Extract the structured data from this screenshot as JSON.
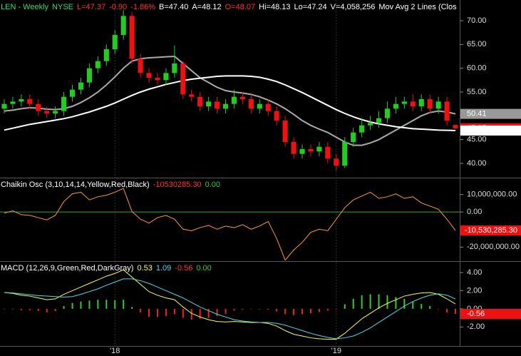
{
  "chart_data": [
    {
      "type": "candlestick",
      "header": [
        {
          "text": "LEN - Weekly",
          "color": "#33dd66"
        },
        {
          "text": "NYSE",
          "color": "#33dd66"
        },
        {
          "text": "L=47.37",
          "color": "#ff3333"
        },
        {
          "text": "-0.90",
          "color": "#ff3333"
        },
        {
          "text": "-1.86%",
          "color": "#ff3333"
        },
        {
          "text": "B=47.40",
          "color": "#ffffff"
        },
        {
          "text": "A=48.12",
          "color": "#ffffff"
        },
        {
          "text": "O=48.07",
          "color": "#ff3333"
        },
        {
          "text": "Hi=48.13",
          "color": "#ffffff"
        },
        {
          "text": "Lo=47.24",
          "color": "#ffffff"
        },
        {
          "text": "V=4,058,256",
          "color": "#ffffff"
        },
        {
          "text": "Mov Avg 2 Lines (Clos",
          "color": "#ffffff"
        }
      ],
      "open": [
        51.5,
        52.5,
        53,
        53.5,
        52.5,
        51,
        50.5,
        51,
        54,
        55.5,
        57,
        60,
        61.5,
        64,
        67,
        71,
        62,
        59,
        58,
        57.5,
        59,
        61,
        54.5,
        54,
        52,
        53,
        51.5,
        52.5,
        54,
        53.5,
        51.5,
        52.5,
        51,
        49,
        44.5,
        42,
        43,
        42.5,
        43.5,
        41,
        39.5,
        44.5,
        46.5,
        48,
        48.5,
        49.5,
        51.5,
        52.5,
        53,
        52,
        53.5,
        51.5,
        53,
        48.07
      ],
      "high": [
        53.5,
        54,
        54.5,
        54.5,
        53.5,
        52,
        52,
        55,
        56.5,
        58,
        61,
        62.5,
        65,
        68,
        72.3,
        71.8,
        63,
        60,
        59,
        60,
        64.8,
        61.5,
        55.5,
        55,
        54,
        54,
        53.5,
        55.5,
        55,
        54.5,
        53.5,
        53.5,
        52,
        50,
        45.5,
        44,
        44,
        44.5,
        44.5,
        42,
        45.5,
        47.5,
        49.5,
        50,
        51,
        53,
        54,
        54,
        54.5,
        54.5,
        54.5,
        54,
        54,
        48.13
      ],
      "low": [
        50.5,
        51.5,
        52,
        51.5,
        50,
        49.5,
        49.5,
        50,
        53,
        54.5,
        56,
        59,
        60.5,
        63,
        66,
        61,
        58,
        57,
        56.5,
        56.5,
        58,
        53.5,
        53,
        51,
        51,
        50.5,
        50.5,
        51.5,
        52.5,
        50.5,
        50.5,
        50,
        48,
        43.5,
        41,
        41,
        41.5,
        41.5,
        40,
        38.5,
        39,
        43.5,
        45.5,
        47,
        47.5,
        48.5,
        50.5,
        51.5,
        51,
        51,
        50.5,
        50.5,
        48,
        47.24
      ],
      "close": [
        52.5,
        53,
        53.5,
        52.5,
        51,
        50.5,
        51,
        54,
        55.5,
        57,
        60,
        61.5,
        64,
        67,
        71,
        62,
        59,
        58,
        57.5,
        59,
        61,
        54.5,
        54,
        52,
        53,
        51.5,
        52.5,
        54,
        53.5,
        51.5,
        52.5,
        51,
        49,
        44.5,
        42,
        43,
        42.5,
        43.5,
        41,
        39.5,
        44.5,
        46.5,
        48,
        48.5,
        49.5,
        51.5,
        52.5,
        53,
        52,
        53.5,
        51.5,
        53,
        49,
        47.37
      ],
      "up_color": "#22cc22",
      "down_color": "#ee1111",
      "series": [
        {
          "color": "#aaaaaa",
          "values": [
            51,
            51.2,
            51.5,
            51.7,
            51.6,
            51.4,
            51.3,
            51.5,
            52,
            52.8,
            53.8,
            55,
            56.5,
            58.2,
            60,
            61.5,
            62,
            62.2,
            62.3,
            62.4,
            62.5,
            61,
            59.5,
            58,
            57,
            56,
            55.3,
            55,
            54.8,
            54.5,
            54,
            53.3,
            52.5,
            51.5,
            50.3,
            49,
            48,
            47.2,
            46.5,
            45.5,
            44.5,
            43.8,
            43.8,
            44.3,
            45,
            46,
            47,
            48,
            49,
            50,
            50.7,
            51,
            50.8,
            50.41
          ]
        },
        {
          "color": "#ffffff",
          "values": [
            47,
            47.4,
            47.8,
            48.2,
            48.5,
            48.8,
            49.1,
            49.4,
            49.8,
            50.3,
            50.8,
            51.4,
            52,
            52.7,
            53.5,
            54.3,
            55,
            55.6,
            56.1,
            56.6,
            57,
            57.4,
            57.7,
            57.9,
            58.1,
            58.3,
            58.4,
            58.4,
            58.4,
            58.3,
            58.1,
            57.7,
            57.2,
            56.5,
            55.7,
            54.9,
            54,
            53.1,
            52.2,
            51.3,
            50.5,
            49.8,
            49.2,
            48.7,
            48.3,
            48,
            47.7,
            47.5,
            47.3,
            47.2,
            47.1,
            47,
            46.95,
            46.9
          ]
        }
      ],
      "ylim": [
        37,
        74.35
      ],
      "yticks": [
        {
          "value": 40,
          "label": "40.00"
        },
        {
          "value": 45,
          "label": "45.00"
        },
        {
          "value": 50,
          "label": "50.00"
        },
        {
          "value": 55,
          "label": "55.00"
        },
        {
          "value": 60,
          "label": "60.00"
        },
        {
          "value": 65,
          "label": "65.00"
        },
        {
          "value": 70,
          "label": "70.00"
        }
      ]
    },
    {
      "type": "line",
      "header": [
        {
          "text": "Chaikin Osc (3,10,14,14,Yellow,Red,Black)",
          "color": "#ffffff"
        },
        {
          "text": "-10530285.30",
          "color": "#ff3333"
        },
        {
          "text": "0.00",
          "color": "#33cc33"
        }
      ],
      "series": [
        {
          "color": "#ff9933",
          "values": [
            -600000,
            700000,
            -1500000,
            -1900000,
            -3200000,
            -4500000,
            -1900000,
            6000000,
            10400000,
            11300000,
            6900000,
            8700000,
            9600000,
            11300000,
            13500000,
            300000,
            -4100000,
            -6300000,
            -3200000,
            -1900000,
            -4100000,
            -9800000,
            -10700000,
            -8900000,
            -7600000,
            -9800000,
            -8000000,
            -8900000,
            -7200000,
            -9800000,
            -8000000,
            -5400000,
            -15100000,
            -27400000,
            -21700000,
            -17300000,
            -11600000,
            -9800000,
            -10700000,
            -4100000,
            2500000,
            6900000,
            9100000,
            11300000,
            7800000,
            8700000,
            10400000,
            7800000,
            8700000,
            5200000,
            3400000,
            1600000,
            -4100000,
            -10530285.3
          ],
          "value_labels": [
            null,
            null,
            null,
            null,
            null,
            null,
            null,
            null,
            null,
            null,
            null,
            null,
            null,
            null,
            null,
            null,
            null,
            null,
            null,
            null,
            null,
            null,
            null,
            null,
            null,
            null,
            null,
            null,
            null,
            null,
            null,
            null,
            null,
            null,
            null,
            null,
            null,
            null,
            null,
            null,
            null,
            null,
            null,
            null,
            null,
            null,
            null,
            null,
            null,
            null,
            null,
            null,
            null,
            "-10,530,285.30"
          ]
        }
      ],
      "zero_color": "#33aa33",
      "ylim": [
        -28000000,
        19200000
      ],
      "yticks": [
        {
          "value": -20000000,
          "label": "-20,000,000.00"
        },
        {
          "value": 0,
          "label": "0.00"
        },
        {
          "value": 10000000,
          "label": "10,000,000.00"
        }
      ]
    },
    {
      "type": "macd",
      "header": [
        {
          "text": "MACD (12,26,9,Green,Red,DarkGray)",
          "color": "#ffffff"
        },
        {
          "text": "0.53",
          "color": "#ffff44"
        },
        {
          "text": "1.09",
          "color": "#44ddee"
        },
        {
          "text": "-0.56",
          "color": "#ff3333"
        },
        {
          "text": "0.00",
          "color": "#33cc33"
        }
      ],
      "categories": [
        null,
        null,
        null,
        null,
        null,
        null,
        null,
        null,
        null,
        null,
        null,
        null,
        null,
        "'18",
        null,
        null,
        null,
        null,
        null,
        null,
        null,
        null,
        null,
        null,
        null,
        null,
        null,
        null,
        null,
        null,
        null,
        null,
        null,
        null,
        null,
        null,
        null,
        null,
        null,
        "'19",
        null,
        null,
        null,
        null,
        null,
        null,
        null,
        null,
        null,
        null,
        null,
        null,
        null,
        null
      ],
      "series": [
        {
          "color": "#ffff44",
          "values": [
            1.8,
            1.7,
            1.5,
            1.4,
            1.2,
            1.0,
            1.1,
            1.6,
            2.0,
            2.4,
            2.8,
            3.2,
            3.6,
            3.9,
            4.3,
            3.5,
            2.7,
            1.9,
            1.5,
            1.2,
            1.0,
            0.2,
            -0.5,
            -0.9,
            -1.2,
            -1.4,
            -1.45,
            -1.4,
            -1.45,
            -1.5,
            -1.5,
            -1.6,
            -1.9,
            -2.4,
            -2.8,
            -3.0,
            -3.2,
            -3.3,
            -3.35,
            -3.35,
            -2.7,
            -1.9,
            -1.1,
            -0.5,
            0.1,
            0.6,
            1.0,
            1.4,
            1.6,
            1.75,
            1.8,
            1.6,
            1.1,
            0.53
          ]
        },
        {
          "color": "#44ddee",
          "values": [
            1.8,
            1.75,
            1.65,
            1.55,
            1.45,
            1.4,
            1.35,
            1.3,
            1.35,
            1.6,
            1.9,
            2.2,
            2.6,
            2.95,
            3.3,
            3.3,
            3.1,
            2.8,
            2.4,
            2.0,
            1.6,
            1.2,
            0.7,
            0.2,
            -0.2,
            -0.6,
            -0.9,
            -1.2,
            -1.35,
            -1.45,
            -1.5,
            -1.5,
            -1.6,
            -1.8,
            -2.1,
            -2.4,
            -2.7,
            -2.95,
            -3.15,
            -3.3,
            -3.2,
            -3.0,
            -2.6,
            -2.1,
            -1.5,
            -0.9,
            -0.3,
            0.3,
            0.8,
            1.2,
            1.5,
            1.65,
            1.5,
            1.09
          ]
        }
      ],
      "histogram": {
        "up_color": "#33cc33",
        "down_color": "#ee2222",
        "values": [
          0,
          -0.05,
          -0.15,
          -0.15,
          -0.25,
          -0.4,
          -0.25,
          0.3,
          0.65,
          0.8,
          0.9,
          1.0,
          1.0,
          0.95,
          1.0,
          0.2,
          -0.4,
          -0.9,
          -0.9,
          -0.8,
          -0.6,
          -1.0,
          -1.2,
          -1.1,
          -1.0,
          -0.8,
          -0.55,
          -0.2,
          -0.1,
          -0.05,
          0,
          -0.1,
          -0.3,
          -0.6,
          -0.7,
          -0.6,
          -0.5,
          -0.35,
          -0.2,
          -0.05,
          0.5,
          1.1,
          1.5,
          1.6,
          1.6,
          1.5,
          1.3,
          1.1,
          0.8,
          0.55,
          0.3,
          -0.05,
          -0.4,
          -0.56
        ]
      },
      "ylim": [
        -4.1,
        5.18
      ],
      "yticks": [
        {
          "value": -2,
          "label": "-2.00"
        },
        {
          "value": 0,
          "label": "0.00"
        },
        {
          "value": 2,
          "label": "2.00"
        },
        {
          "value": 4,
          "label": "4.00"
        }
      ]
    }
  ]
}
